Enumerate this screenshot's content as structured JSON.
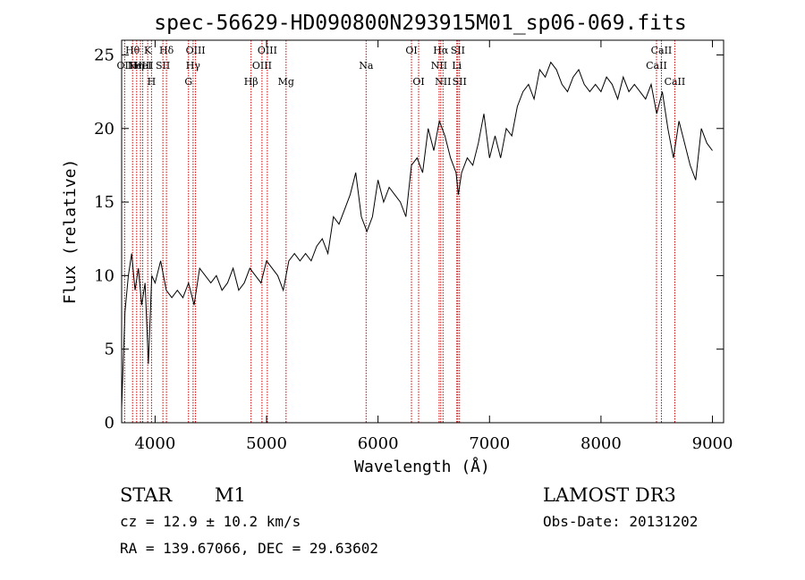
{
  "chart_data": {
    "type": "line",
    "title": "spec-56629-HD090800N293915M01_sp06-069.fits",
    "xlabel": "Wavelength (Å)",
    "ylabel": "Flux (relative)",
    "xlim": [
      3700,
      9100
    ],
    "ylim": [
      0,
      26
    ],
    "xticks": [
      4000,
      5000,
      6000,
      7000,
      8000,
      9000
    ],
    "yticks": [
      0,
      5,
      10,
      15,
      20,
      25
    ],
    "grid": false,
    "series_color": "#000000",
    "line_marker_color": "#cc0000",
    "spectrum": {
      "x": [
        3700,
        3730,
        3760,
        3790,
        3820,
        3850,
        3880,
        3910,
        3940,
        3970,
        4000,
        4050,
        4100,
        4150,
        4200,
        4250,
        4300,
        4350,
        4400,
        4450,
        4500,
        4550,
        4600,
        4650,
        4700,
        4750,
        4800,
        4850,
        4900,
        4950,
        5000,
        5050,
        5100,
        5150,
        5200,
        5250,
        5300,
        5350,
        5400,
        5450,
        5500,
        5550,
        5600,
        5650,
        5700,
        5750,
        5800,
        5850,
        5900,
        5950,
        6000,
        6050,
        6100,
        6150,
        6200,
        6250,
        6300,
        6350,
        6400,
        6450,
        6500,
        6550,
        6600,
        6650,
        6700,
        6720,
        6750,
        6800,
        6850,
        6900,
        6950,
        7000,
        7050,
        7100,
        7150,
        7200,
        7250,
        7300,
        7350,
        7400,
        7450,
        7500,
        7550,
        7600,
        7650,
        7700,
        7750,
        7800,
        7850,
        7900,
        7950,
        8000,
        8050,
        8100,
        8150,
        8200,
        8250,
        8300,
        8350,
        8400,
        8450,
        8500,
        8550,
        8600,
        8650,
        8700,
        8750,
        8800,
        8850,
        8900,
        8950,
        9000
      ],
      "y": [
        1.0,
        7.5,
        10.0,
        11.5,
        9.0,
        10.5,
        8.0,
        9.5,
        4.0,
        10.0,
        9.5,
        11.0,
        9.0,
        8.5,
        9.0,
        8.5,
        9.5,
        8.0,
        10.5,
        10.0,
        9.5,
        10.0,
        9.0,
        9.5,
        10.5,
        9.0,
        9.5,
        10.5,
        10.0,
        9.5,
        11.0,
        10.5,
        10.0,
        9.0,
        11.0,
        11.5,
        11.0,
        11.5,
        11.0,
        12.0,
        12.5,
        11.5,
        14.0,
        13.5,
        14.5,
        15.5,
        17.0,
        14.0,
        13.0,
        14.0,
        16.5,
        15.0,
        16.0,
        15.5,
        15.0,
        14.0,
        17.5,
        18.0,
        17.0,
        20.0,
        18.5,
        20.5,
        19.5,
        18.0,
        17.0,
        15.5,
        17.0,
        18.0,
        17.5,
        19.0,
        21.0,
        18.0,
        19.5,
        18.0,
        20.0,
        19.5,
        21.5,
        22.5,
        23.0,
        22.0,
        24.0,
        23.5,
        24.5,
        24.0,
        23.0,
        22.5,
        23.5,
        24.0,
        23.0,
        22.5,
        23.0,
        22.5,
        23.5,
        23.0,
        22.0,
        23.5,
        22.5,
        23.0,
        22.5,
        22.0,
        23.0,
        21.0,
        22.5,
        20.0,
        18.0,
        20.5,
        19.0,
        17.5,
        16.5,
        20.0,
        19.0,
        18.5
      ]
    },
    "line_markers": [
      {
        "x": 3727,
        "label": "OII",
        "row": 2
      },
      {
        "x": 3798,
        "label": "Hθ",
        "row": 1
      },
      {
        "x": 3835,
        "label": "Hη",
        "row": 2
      },
      {
        "x": 3869,
        "label": "NeIII",
        "row": 2
      },
      {
        "x": 3889,
        "label": "HeI",
        "row": 2
      },
      {
        "x": 3934,
        "label": "K",
        "row": 1
      },
      {
        "x": 3968,
        "label": "H",
        "row": 3
      },
      {
        "x": 4070,
        "label": "SII",
        "row": 2
      },
      {
        "x": 4102,
        "label": "Hδ",
        "row": 1
      },
      {
        "x": 4300,
        "label": "G",
        "row": 3
      },
      {
        "x": 4341,
        "label": "Hγ",
        "row": 2
      },
      {
        "x": 4363,
        "label": "OIII",
        "row": 1
      },
      {
        "x": 4861,
        "label": "Hβ",
        "row": 3
      },
      {
        "x": 4959,
        "label": "OIII",
        "row": 2
      },
      {
        "x": 5007,
        "label": "OIII",
        "row": 1
      },
      {
        "x": 5175,
        "label": "Mg",
        "row": 3
      },
      {
        "x": 5893,
        "label": "Na",
        "row": 2
      },
      {
        "x": 6300,
        "label": "OI",
        "row": 1
      },
      {
        "x": 6364,
        "label": "OI",
        "row": 3
      },
      {
        "x": 6548,
        "label": "NII",
        "row": 2
      },
      {
        "x": 6563,
        "label": "Hα",
        "row": 1
      },
      {
        "x": 6583,
        "label": "NII",
        "row": 3
      },
      {
        "x": 6707,
        "label": "Li",
        "row": 2
      },
      {
        "x": 6716,
        "label": "SII",
        "row": 1
      },
      {
        "x": 6731,
        "label": "SII",
        "row": 3
      },
      {
        "x": 8498,
        "label": "CaII",
        "row": 2
      },
      {
        "x": 8542,
        "label": "CaII",
        "row": 1
      },
      {
        "x": 8662,
        "label": "CaII",
        "row": 3
      }
    ]
  },
  "info": {
    "object_class": "STAR",
    "subclass": "M1",
    "survey": "LAMOST DR3",
    "cz": "cz = 12.9 ± 10.2 km/s",
    "obs_date": "Obs-Date: 20131202",
    "radec": "RA = 139.67066, DEC =  29.63602"
  }
}
